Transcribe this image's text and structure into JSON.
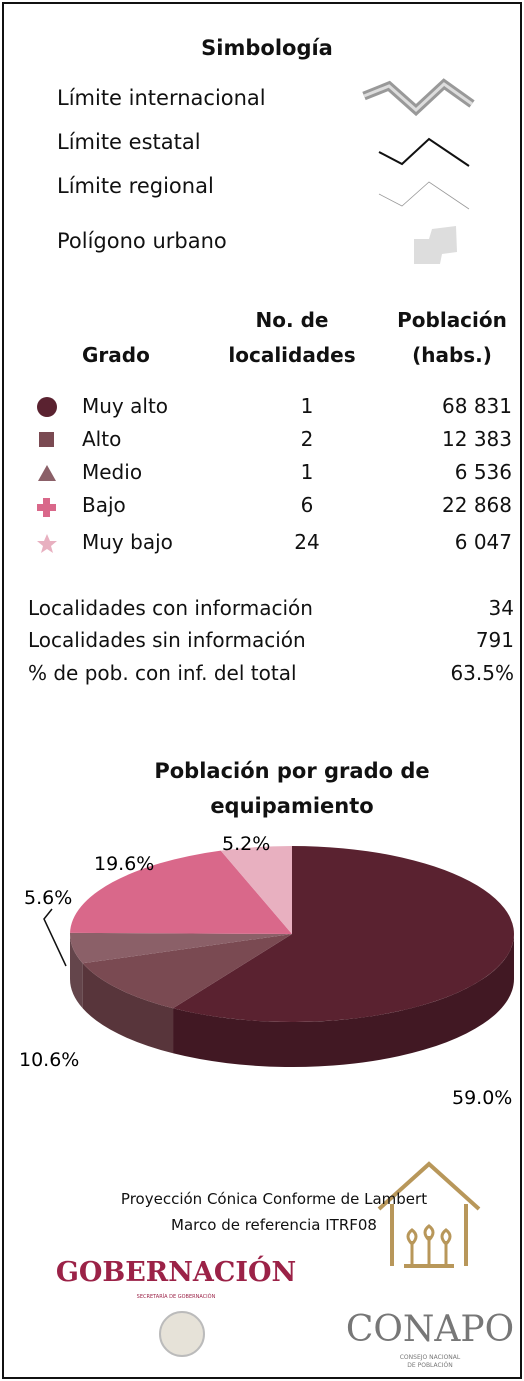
{
  "symbology": {
    "title": "Simbología",
    "items": [
      "Límite internacional",
      "Límite estatal",
      "Límite regional",
      "Polígono urbano"
    ]
  },
  "table": {
    "headers": [
      [
        "Grado"
      ],
      [
        "No. de",
        "localidades"
      ],
      [
        "Población",
        "(habs.)"
      ]
    ],
    "rows": [
      [
        "Muy alto",
        "1",
        "68 831"
      ],
      [
        "Alto",
        "2",
        "12 383"
      ],
      [
        "Medio",
        "1",
        "6 536"
      ],
      [
        "Bajo",
        "6",
        "22 868"
      ],
      [
        "Muy bajo",
        "24",
        "6 047"
      ]
    ]
  },
  "summary": {
    "rows": [
      [
        "Localidades con información",
        "34"
      ],
      [
        "Localidades sin información",
        "791"
      ],
      [
        "% de pob. con inf. del total",
        "63.5%"
      ]
    ]
  },
  "chart_data": {
    "type": "pie",
    "title": "Población por grado de equipamiento",
    "values": [
      59.0,
      10.6,
      5.6,
      19.6,
      5.2
    ],
    "value_labels": [
      "59.0%",
      "10.6%",
      "5.6%",
      "19.6%",
      "5.2%"
    ],
    "colors": [
      "#5a2230",
      "#7a4a52",
      "#8b6068",
      "#d9688a",
      "#e8b0c0"
    ]
  },
  "footer": {
    "projection": [
      "Proyección Cónica Conforme de Lambert",
      "Marco de referencia ITRF08"
    ],
    "gob": "GOBERNACIÓN",
    "gob_sub": "SECRETARÍA DE GOBERNACIÓN",
    "conapo": "CONAPO",
    "conapo_sub": [
      "CONSEJO NACIONAL",
      "DE POBLACIÓN"
    ]
  }
}
